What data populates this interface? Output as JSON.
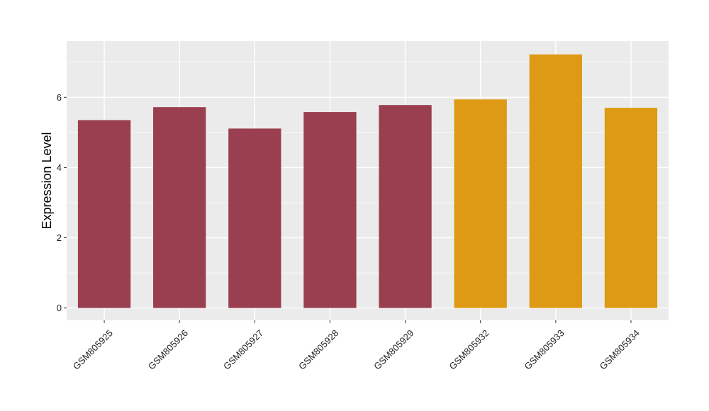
{
  "chart_data": {
    "type": "bar",
    "categories": [
      "GSM805925",
      "GSM805926",
      "GSM805927",
      "GSM805928",
      "GSM805929",
      "GSM805932",
      "GSM805933",
      "GSM805934"
    ],
    "values": [
      5.35,
      5.72,
      5.11,
      5.58,
      5.78,
      5.94,
      7.22,
      5.7
    ],
    "bar_colors": [
      "#9a3f4f",
      "#9a3f4f",
      "#9a3f4f",
      "#9a3f4f",
      "#9a3f4f",
      "#de9a14",
      "#de9a14",
      "#de9a14"
    ],
    "title": "",
    "xlabel": "",
    "ylabel": "Expression Level",
    "ylim": [
      -0.35,
      7.6
    ],
    "yticks": [
      0,
      2,
      4,
      6
    ],
    "grid": true,
    "legend": "none"
  },
  "colors": {
    "panel_background": "#ebebeb",
    "grid_line": "#ffffff"
  }
}
